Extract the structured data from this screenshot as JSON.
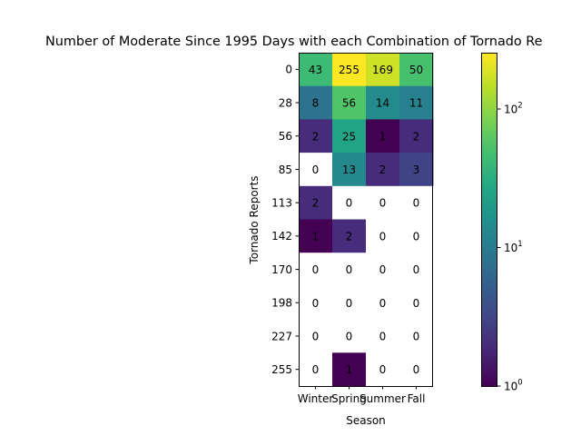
{
  "chart_data": {
    "type": "heatmap",
    "title": "Number of Moderate Since 1995 Days with each Combination of Tornado Re",
    "xlabel": "Season",
    "ylabel": "Tornado Reports",
    "x_categories": [
      "Winter",
      "Spring",
      "Summer",
      "Fall"
    ],
    "y_categories": [
      "0",
      "28",
      "56",
      "85",
      "113",
      "142",
      "170",
      "198",
      "227",
      "255"
    ],
    "values": [
      [
        43,
        255,
        169,
        50
      ],
      [
        8,
        56,
        14,
        11
      ],
      [
        2,
        25,
        1,
        2
      ],
      [
        0,
        13,
        2,
        3
      ],
      [
        2,
        0,
        0,
        0
      ],
      [
        1,
        2,
        0,
        0
      ],
      [
        0,
        0,
        0,
        0
      ],
      [
        0,
        0,
        0,
        0
      ],
      [
        0,
        0,
        0,
        0
      ],
      [
        0,
        1,
        0,
        0
      ]
    ],
    "colorscale": "viridis",
    "color_scale_type": "log",
    "color_range": [
      1,
      255
    ],
    "zero_cells_color": "#ffffff",
    "colorbar": {
      "ticks": [
        {
          "value": 1,
          "label": "10",
          "exp": "0"
        },
        {
          "value": 10,
          "label": "10",
          "exp": "1"
        },
        {
          "value": 100,
          "label": "10",
          "exp": "2"
        }
      ]
    }
  }
}
